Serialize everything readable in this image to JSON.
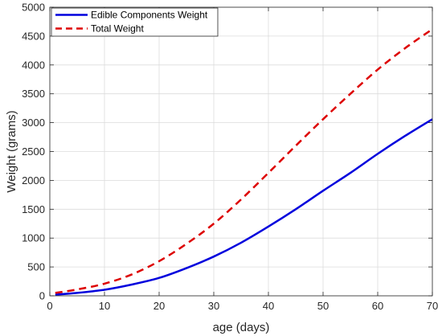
{
  "chart_data": {
    "type": "line",
    "title": "",
    "xlabel": "age (days)",
    "ylabel": "Weight (grams)",
    "xlim": [
      0,
      70
    ],
    "ylim": [
      0,
      5000
    ],
    "xticks": [
      0,
      10,
      20,
      30,
      40,
      50,
      60,
      70
    ],
    "yticks": [
      0,
      500,
      1000,
      1500,
      2000,
      2500,
      3000,
      3500,
      4000,
      4500,
      5000
    ],
    "grid": true,
    "legend_position": "top-left",
    "x": [
      1,
      5,
      10,
      15,
      20,
      25,
      30,
      35,
      40,
      45,
      50,
      55,
      60,
      65,
      70
    ],
    "series": [
      {
        "name": "Edible Components Weight",
        "color": "#0000dd",
        "style": "solid",
        "values": [
          20,
          50,
          105,
          195,
          310,
          480,
          680,
          920,
          1200,
          1500,
          1820,
          2130,
          2460,
          2770,
          3060
        ]
      },
      {
        "name": "Total Weight",
        "color": "#dd0000",
        "style": "dashed",
        "values": [
          50,
          110,
          210,
          370,
          600,
          900,
          1250,
          1670,
          2130,
          2600,
          3060,
          3500,
          3920,
          4290,
          4620
        ]
      }
    ]
  }
}
